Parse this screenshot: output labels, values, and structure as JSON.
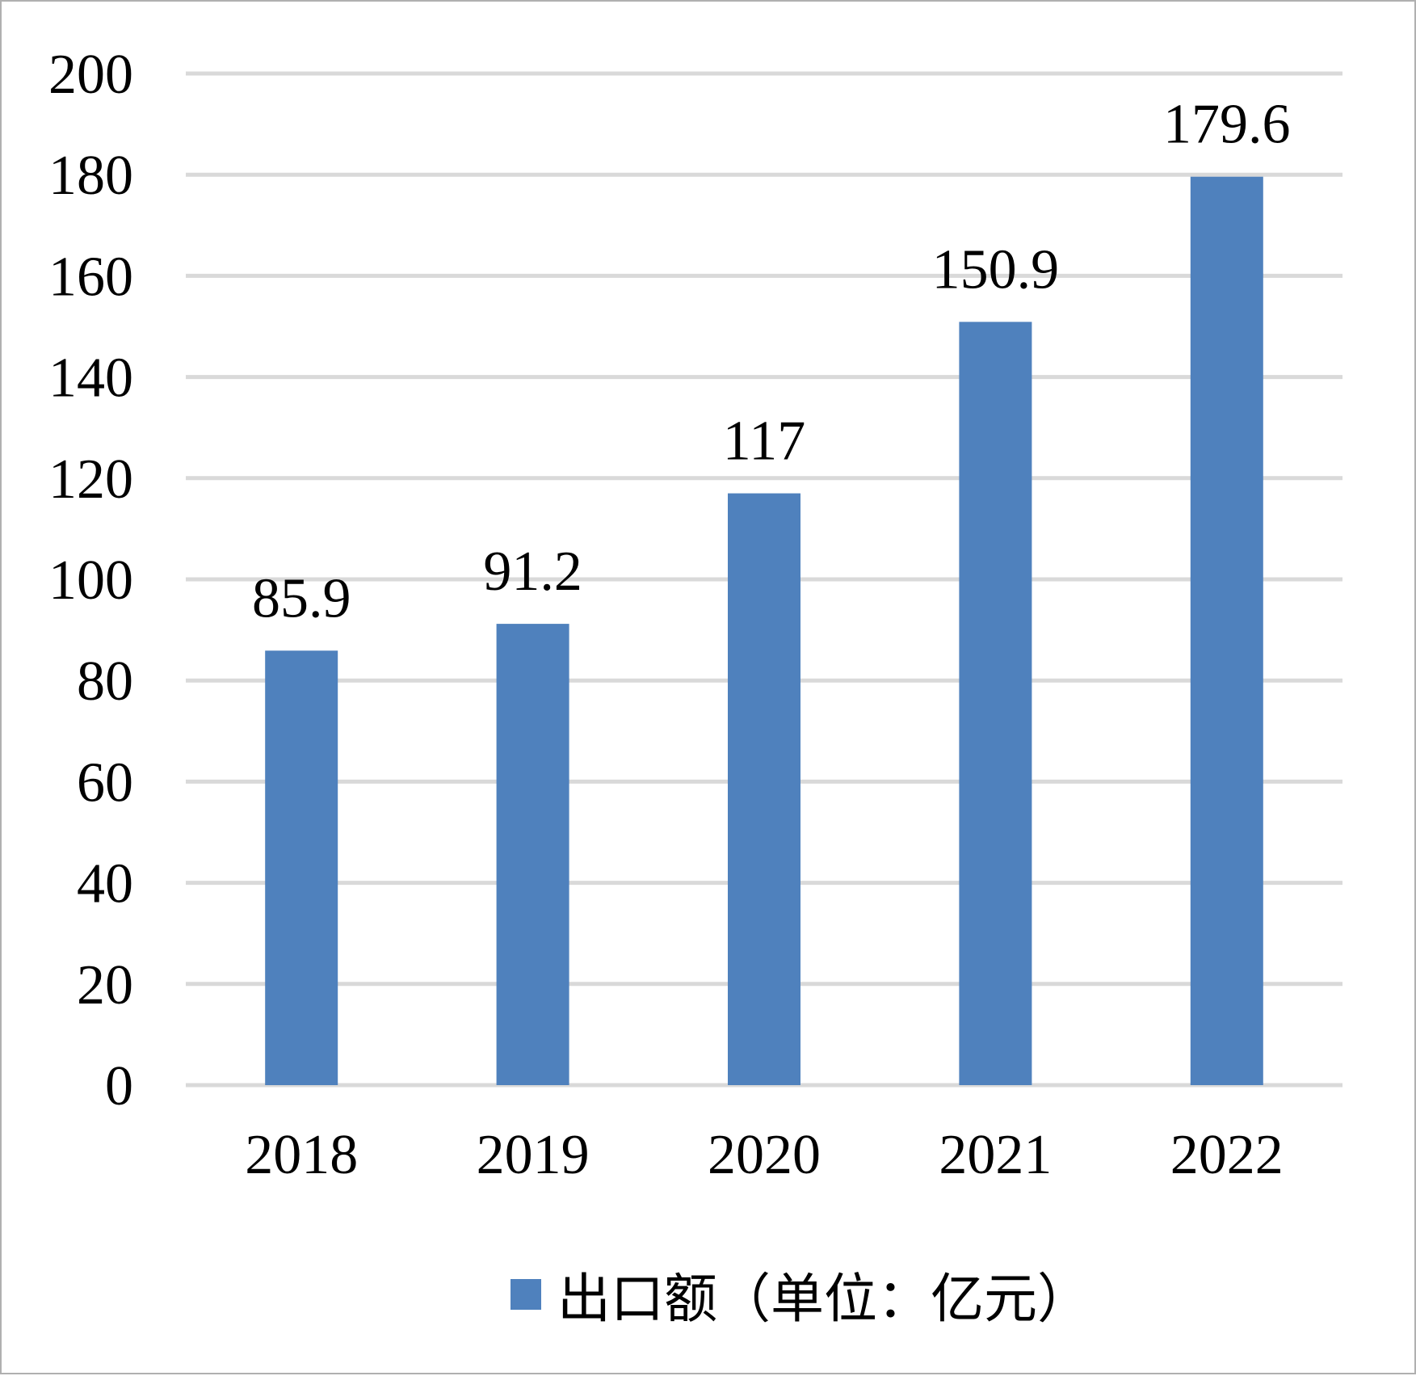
{
  "chart_data": {
    "type": "bar",
    "categories": [
      "2018",
      "2019",
      "2020",
      "2021",
      "2022"
    ],
    "series": [
      {
        "name": "出口额（单位：亿元）",
        "values": [
          85.9,
          91.2,
          117,
          150.9,
          179.6
        ],
        "value_labels": [
          "85.9",
          "91.2",
          "117",
          "150.9",
          "179.6"
        ],
        "color": "#4f81bd"
      }
    ],
    "ylim": [
      0,
      200
    ],
    "yticks": [
      "0",
      "20",
      "40",
      "60",
      "80",
      "100",
      "120",
      "140",
      "160",
      "180",
      "200"
    ],
    "grid": true,
    "grid_color": "#d9d9d9",
    "legend_position": "bottom"
  }
}
